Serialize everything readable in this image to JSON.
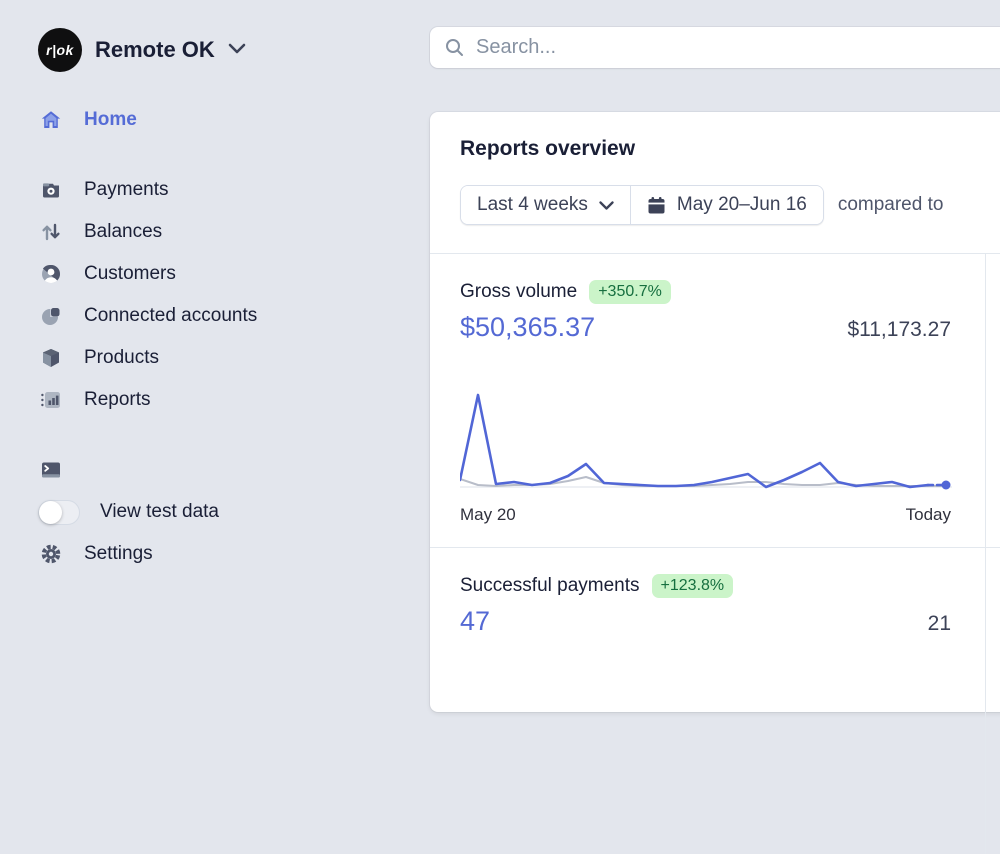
{
  "brand": {
    "logo_text": "r|ok",
    "account_name": "Remote OK"
  },
  "search": {
    "placeholder": "Search..."
  },
  "sidebar": {
    "items": [
      {
        "label": "Home",
        "active": true
      },
      {
        "label": "Payments"
      },
      {
        "label": "Balances"
      },
      {
        "label": "Customers"
      },
      {
        "label": "Connected accounts"
      },
      {
        "label": "Products"
      },
      {
        "label": "Reports"
      }
    ],
    "footer_items": [
      {
        "label": "Developers"
      },
      {
        "label": "View test data",
        "toggle_state": "off"
      },
      {
        "label": "Settings"
      }
    ]
  },
  "reports": {
    "title": "Reports overview",
    "filters": {
      "range_label": "Last 4 weeks",
      "date_range": "May 20–Jun 16",
      "compare_label": "compared to"
    },
    "metrics": [
      {
        "name": "Gross volume",
        "change": "+350.7%",
        "current": "$50,365.37",
        "previous": "$11,173.27",
        "x_start": "May 20",
        "x_end": "Today"
      },
      {
        "name": "Successful payments",
        "change": "+123.8%",
        "current": "47",
        "previous": "21"
      }
    ]
  },
  "chart_data": {
    "type": "line",
    "title": "Gross volume",
    "xlabel": "",
    "ylabel": "",
    "x_tick_labels": [
      "May 20",
      "Today"
    ],
    "y_axis_visible": false,
    "grid": false,
    "legend": "none",
    "units": "relative (0-100, estimated from pixel heights; no y-axis shown)",
    "series": [
      {
        "name": "current period (May 20–Jun 16)",
        "color": "#5166d6",
        "values": [
          7,
          92,
          3,
          5,
          2,
          4,
          11,
          23,
          4,
          3,
          2,
          1,
          1,
          2,
          5,
          9,
          13,
          0,
          7,
          15,
          24,
          5,
          1,
          3,
          5,
          0,
          2,
          2
        ],
        "last_segment_dashed": true,
        "end_dot": true
      },
      {
        "name": "previous period",
        "color": "#b8bdc9",
        "values": [
          8,
          2,
          1,
          2,
          2,
          3,
          6,
          10,
          4,
          2,
          1,
          1,
          1,
          1,
          2,
          3,
          5,
          5,
          3,
          2,
          2,
          4,
          2,
          1,
          1,
          1,
          1,
          1
        ]
      }
    ]
  },
  "colors": {
    "background": "#e3e6ed",
    "accent": "#556cd6",
    "value_blue": "#5469d4",
    "text_primary": "#1a1f36",
    "text_secondary": "#3c4257",
    "badge_bg": "#cbf4c9",
    "badge_text": "#166f3f",
    "chart_current": "#5166d6",
    "chart_previous": "#b8bdc9",
    "divider": "#e3e8ee"
  }
}
